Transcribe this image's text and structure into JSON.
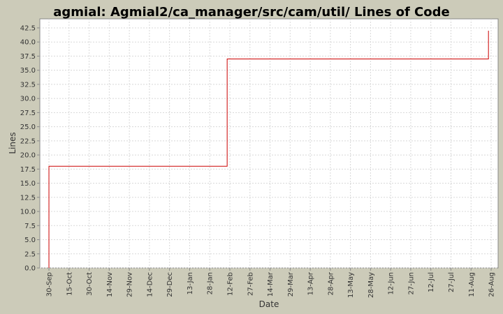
{
  "chart_data": {
    "type": "line",
    "title": "agmial: Agmial2/ca_manager/src/cam/util/ Lines of Code",
    "xlabel": "Date",
    "ylabel": "Lines",
    "x": [
      0,
      0,
      133,
      133,
      328,
      328
    ],
    "series": [
      {
        "color": "#cc0000",
        "values": [
          0,
          18,
          18,
          37,
          37,
          42
        ]
      }
    ],
    "xlim": [
      -6.8,
      335.2
    ],
    "xticks": [
      {
        "value": 0,
        "label": "30-Sep"
      },
      {
        "value": 15,
        "label": "15-Oct"
      },
      {
        "value": 30,
        "label": "30-Oct"
      },
      {
        "value": 45,
        "label": "14-Nov"
      },
      {
        "value": 60,
        "label": "29-Nov"
      },
      {
        "value": 75,
        "label": "14-Dec"
      },
      {
        "value": 90,
        "label": "29-Dec"
      },
      {
        "value": 105,
        "label": "13-Jan"
      },
      {
        "value": 120,
        "label": "28-Jan"
      },
      {
        "value": 135,
        "label": "12-Feb"
      },
      {
        "value": 150,
        "label": "27-Feb"
      },
      {
        "value": 165,
        "label": "14-Mar"
      },
      {
        "value": 180,
        "label": "29-Mar"
      },
      {
        "value": 195,
        "label": "13-Apr"
      },
      {
        "value": 210,
        "label": "28-Apr"
      },
      {
        "value": 225,
        "label": "13-May"
      },
      {
        "value": 240,
        "label": "28-May"
      },
      {
        "value": 255,
        "label": "12-Jun"
      },
      {
        "value": 270,
        "label": "27-Jun"
      },
      {
        "value": 285,
        "label": "12-Jul"
      },
      {
        "value": 300,
        "label": "27-Jul"
      },
      {
        "value": 315,
        "label": "11-Aug"
      },
      {
        "value": 330,
        "label": "26-Aug"
      }
    ],
    "ylim": [
      0,
      44.1
    ],
    "yticks": [
      {
        "value": 0,
        "label": "0.0"
      },
      2.5,
      {
        "value": 5,
        "label": "5.0"
      },
      7.5,
      {
        "value": 10,
        "label": "10.0"
      },
      12.5,
      {
        "value": 15,
        "label": "15.0"
      },
      17.5,
      {
        "value": 20,
        "label": "20.0"
      },
      22.5,
      {
        "value": 25,
        "label": "25.0"
      },
      27.5,
      {
        "value": 30,
        "label": "30.0"
      },
      32.5,
      {
        "value": 35,
        "label": "35.0"
      },
      37.5,
      {
        "value": 40,
        "label": "40.0"
      },
      42.5
    ],
    "grid": true
  }
}
